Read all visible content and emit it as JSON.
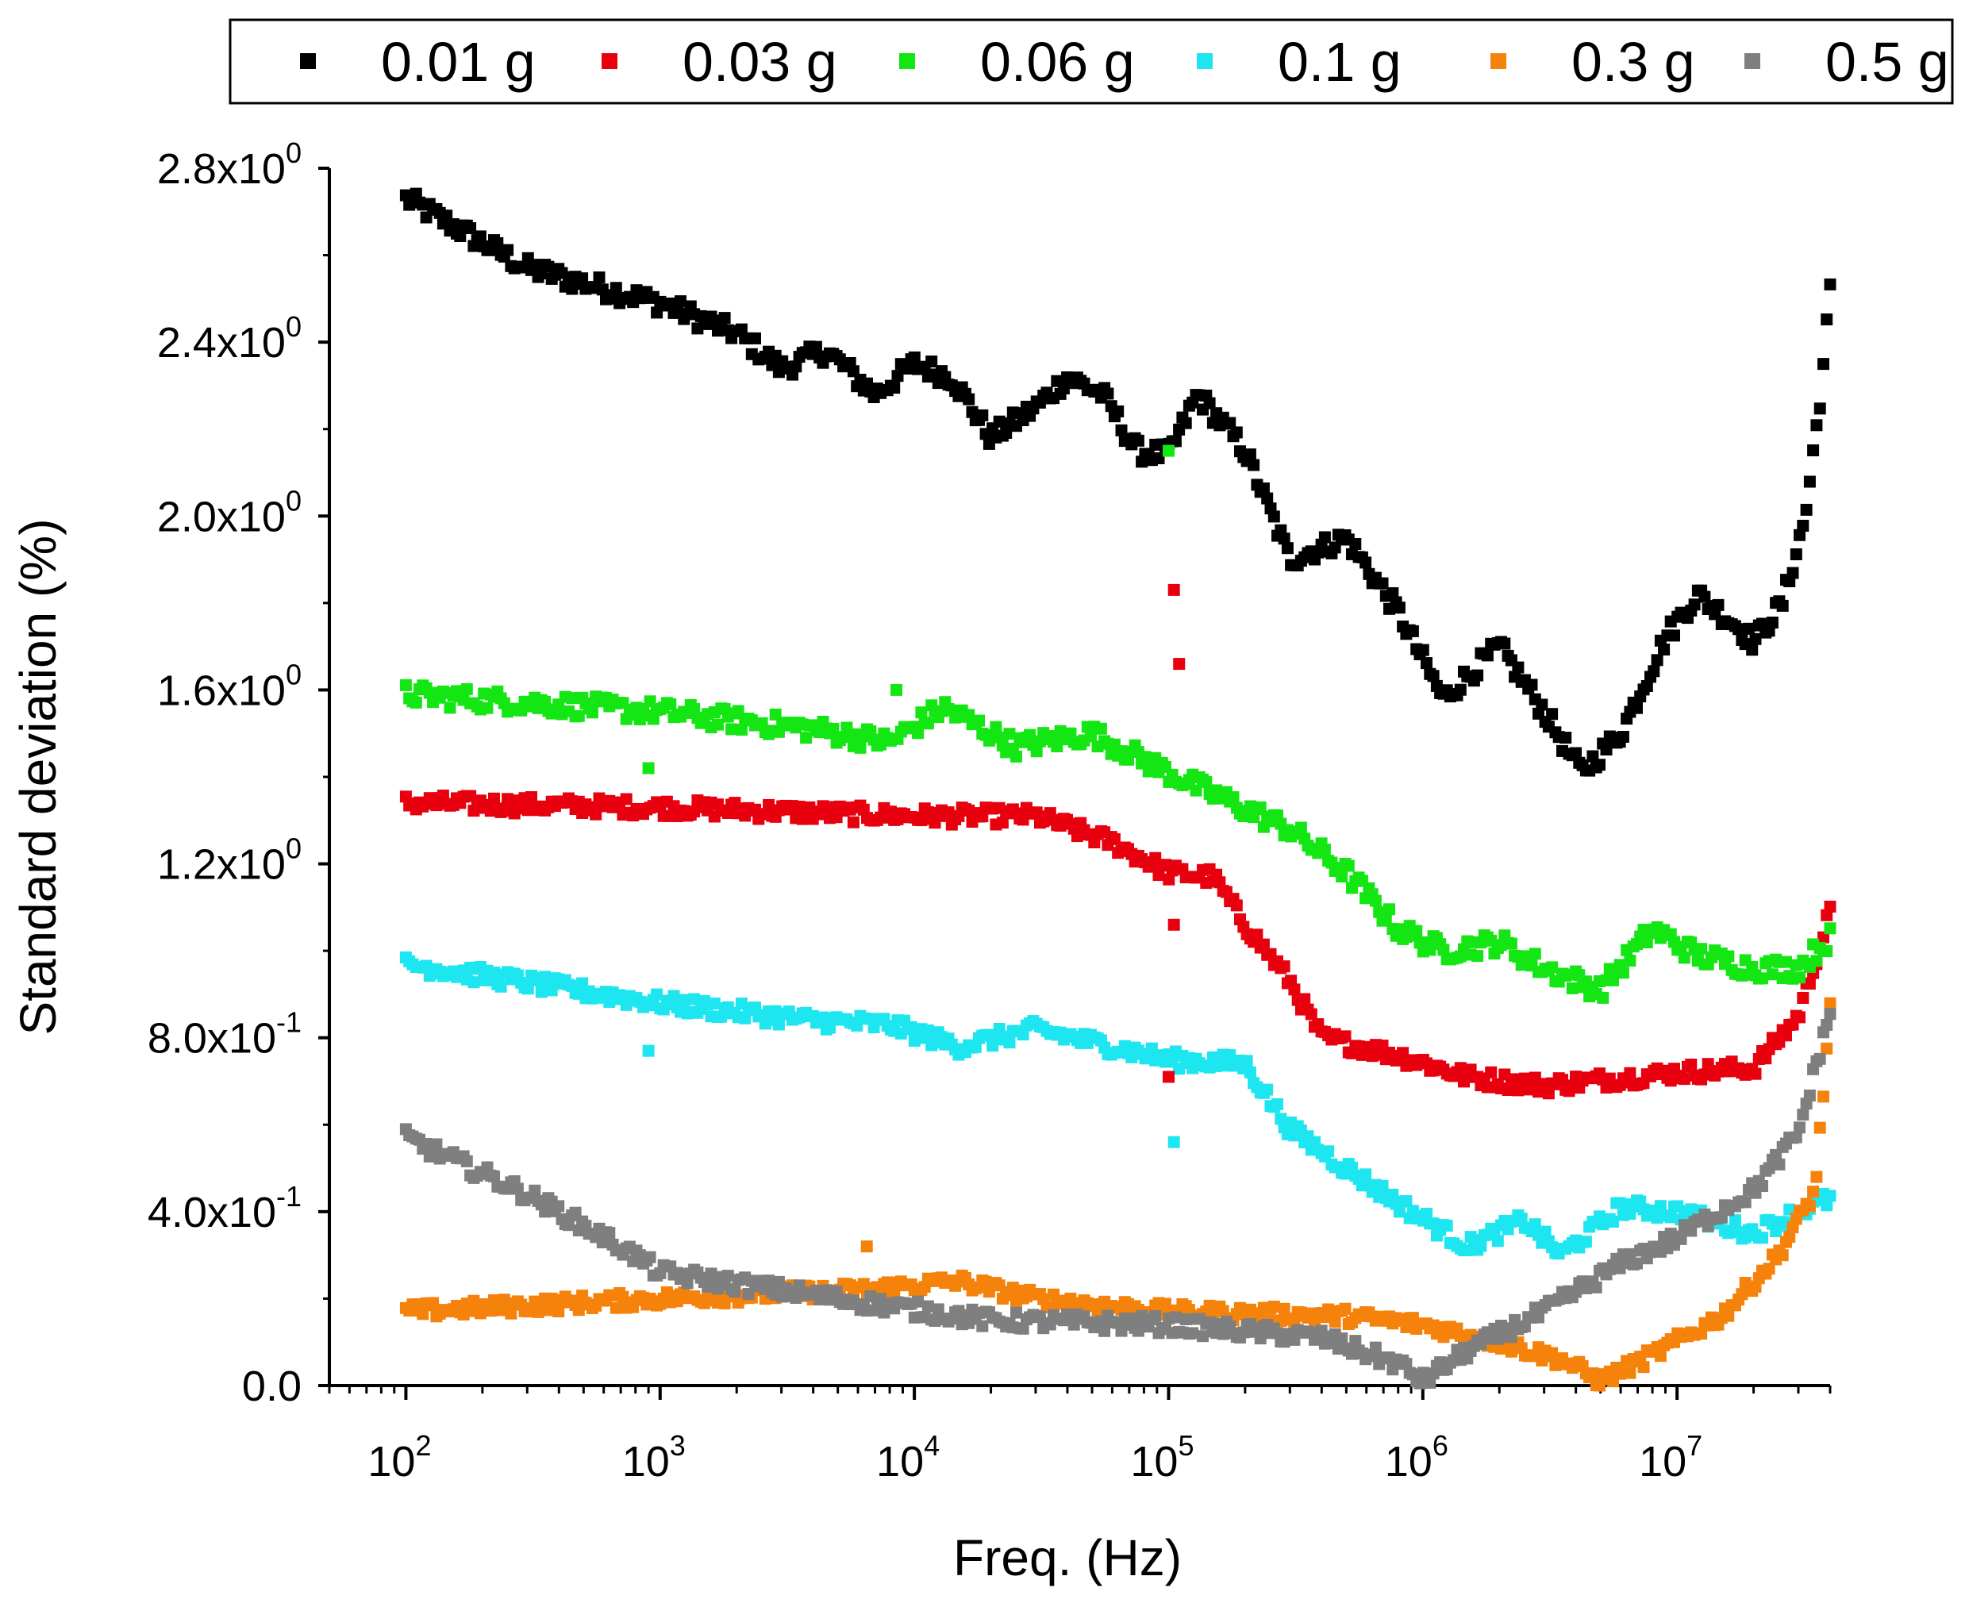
{
  "chart_data": {
    "type": "scatter",
    "title": "",
    "xlabel": "Freq. (Hz)",
    "ylabel": "Standard deviation (%)",
    "xscale": "log",
    "xlim": [
      50,
      40000000
    ],
    "ylim": [
      0,
      2.8
    ],
    "x_ticks": [
      {
        "value": 100,
        "base": "10",
        "exp": "2"
      },
      {
        "value": 1000,
        "base": "10",
        "exp": "3"
      },
      {
        "value": 10000,
        "base": "10",
        "exp": "4"
      },
      {
        "value": 100000,
        "base": "10",
        "exp": "5"
      },
      {
        "value": 1000000,
        "base": "10",
        "exp": "6"
      },
      {
        "value": 10000000,
        "base": "10",
        "exp": "7"
      }
    ],
    "y_ticks": [
      {
        "value": 0.0,
        "label": "0.0"
      },
      {
        "value": 0.4,
        "mant": "4.0x10",
        "exp": "-1"
      },
      {
        "value": 0.8,
        "mant": "8.0x10",
        "exp": "-1"
      },
      {
        "value": 1.2,
        "mant": "1.2x10",
        "exp": "0"
      },
      {
        "value": 1.6,
        "mant": "1.6x10",
        "exp": "0"
      },
      {
        "value": 2.0,
        "mant": "2.0x10",
        "exp": "0"
      },
      {
        "value": 2.4,
        "mant": "2.4x10",
        "exp": "0"
      },
      {
        "value": 2.8,
        "mant": "2.8x10",
        "exp": "0"
      }
    ],
    "legend_position": "top",
    "series": [
      {
        "name": "0.01 g",
        "color": "#000000",
        "profile": [
          [
            100,
            2.73
          ],
          [
            300,
            2.57
          ],
          [
            1000,
            2.49
          ],
          [
            2000,
            2.42
          ],
          [
            3000,
            2.34
          ],
          [
            4500,
            2.38
          ],
          [
            7000,
            2.28
          ],
          [
            10000,
            2.35
          ],
          [
            14000,
            2.32
          ],
          [
            20000,
            2.18
          ],
          [
            30000,
            2.25
          ],
          [
            40000,
            2.32
          ],
          [
            55000,
            2.28
          ],
          [
            75000,
            2.15
          ],
          [
            100000,
            2.14
          ],
          [
            130000,
            2.28
          ],
          [
            200000,
            2.15
          ],
          [
            300000,
            1.9
          ],
          [
            500000,
            1.95
          ],
          [
            800000,
            1.78
          ],
          [
            1200000,
            1.58
          ],
          [
            2000000,
            1.7
          ],
          [
            3000000,
            1.55
          ],
          [
            4200000,
            1.41
          ],
          [
            6000000,
            1.5
          ],
          [
            9000000,
            1.72
          ],
          [
            12000000,
            1.82
          ],
          [
            17000000,
            1.75
          ],
          [
            20000000,
            1.71
          ],
          [
            26000000,
            1.8
          ],
          [
            32000000,
            2.0
          ],
          [
            37000000,
            2.3
          ],
          [
            40000000,
            2.52
          ]
        ],
        "noise": 0.025
      },
      {
        "name": "0.03 g",
        "color": "#e8000f",
        "profile": [
          [
            100,
            1.34
          ],
          [
            1000,
            1.33
          ],
          [
            10000,
            1.31
          ],
          [
            30000,
            1.31
          ],
          [
            60000,
            1.25
          ],
          [
            100000,
            1.18
          ],
          [
            150000,
            1.17
          ],
          [
            200000,
            1.06
          ],
          [
            300000,
            0.93
          ],
          [
            400000,
            0.8
          ],
          [
            800000,
            0.76
          ],
          [
            1500000,
            0.71
          ],
          [
            3000000,
            0.69
          ],
          [
            10000000,
            0.72
          ],
          [
            20000000,
            0.73
          ],
          [
            30000000,
            0.85
          ],
          [
            40000000,
            1.09
          ]
        ],
        "noise": 0.02
      },
      {
        "name": "0.06 g",
        "color": "#14e614",
        "profile": [
          [
            100,
            1.59
          ],
          [
            1000,
            1.55
          ],
          [
            4000,
            1.51
          ],
          [
            8000,
            1.48
          ],
          [
            13000,
            1.56
          ],
          [
            25000,
            1.47
          ],
          [
            50000,
            1.5
          ],
          [
            100000,
            1.41
          ],
          [
            150000,
            1.36
          ],
          [
            300000,
            1.28
          ],
          [
            500000,
            1.18
          ],
          [
            800000,
            1.05
          ],
          [
            1200000,
            1.0
          ],
          [
            2000000,
            1.02
          ],
          [
            3000000,
            0.96
          ],
          [
            5000000,
            0.91
          ],
          [
            8000000,
            1.05
          ],
          [
            12000000,
            0.99
          ],
          [
            20000000,
            0.96
          ],
          [
            30000000,
            0.96
          ],
          [
            40000000,
            1.03
          ]
        ],
        "noise": 0.025
      },
      {
        "name": "0.1 g",
        "color": "#1ee6f0",
        "profile": [
          [
            100,
            0.97
          ],
          [
            1000,
            0.88
          ],
          [
            4000,
            0.84
          ],
          [
            8000,
            0.83
          ],
          [
            15000,
            0.78
          ],
          [
            30000,
            0.82
          ],
          [
            100000,
            0.75
          ],
          [
            200000,
            0.74
          ],
          [
            300000,
            0.59
          ],
          [
            500000,
            0.5
          ],
          [
            800000,
            0.42
          ],
          [
            1500000,
            0.32
          ],
          [
            2500000,
            0.38
          ],
          [
            3500000,
            0.3
          ],
          [
            6000000,
            0.41
          ],
          [
            10000000,
            0.4
          ],
          [
            20000000,
            0.35
          ],
          [
            30000000,
            0.4
          ],
          [
            40000000,
            0.43
          ]
        ],
        "noise": 0.02
      },
      {
        "name": "0.3 g",
        "color": "#f5820a",
        "profile": [
          [
            100,
            0.17
          ],
          [
            1000,
            0.2
          ],
          [
            6000,
            0.22
          ],
          [
            15000,
            0.24
          ],
          [
            30000,
            0.2
          ],
          [
            100000,
            0.17
          ],
          [
            500000,
            0.16
          ],
          [
            1000000,
            0.14
          ],
          [
            2000000,
            0.1
          ],
          [
            3500000,
            0.06
          ],
          [
            5000000,
            0.01
          ],
          [
            8000000,
            0.07
          ],
          [
            15000000,
            0.16
          ],
          [
            25000000,
            0.3
          ],
          [
            35000000,
            0.45
          ],
          [
            40000000,
            0.87
          ]
        ],
        "noise": 0.018
      },
      {
        "name": "0.5 g",
        "color": "#7f7f7f",
        "profile": [
          [
            100,
            0.57
          ],
          [
            300,
            0.44
          ],
          [
            700,
            0.32
          ],
          [
            1000,
            0.26
          ],
          [
            5000,
            0.2
          ],
          [
            20000,
            0.15
          ],
          [
            100000,
            0.14
          ],
          [
            400000,
            0.11
          ],
          [
            800000,
            0.05
          ],
          [
            1000000,
            0.01
          ],
          [
            1500000,
            0.08
          ],
          [
            3000000,
            0.17
          ],
          [
            6000000,
            0.28
          ],
          [
            10000000,
            0.34
          ],
          [
            20000000,
            0.45
          ],
          [
            30000000,
            0.58
          ],
          [
            40000000,
            0.86
          ]
        ],
        "noise": 0.02
      }
    ],
    "outliers": [
      {
        "series": "0.06 g",
        "x": 100000,
        "y": 2.15
      },
      {
        "series": "0.03 g",
        "x": 105000,
        "y": 1.83
      },
      {
        "series": "0.03 g",
        "x": 110000,
        "y": 1.66
      },
      {
        "series": "0.03 g",
        "x": 105000,
        "y": 1.06
      },
      {
        "series": "0.1 g",
        "x": 105000,
        "y": 0.56
      },
      {
        "series": "0.06 g",
        "x": 8500,
        "y": 1.6
      },
      {
        "series": "0.06 g",
        "x": 900,
        "y": 1.42
      },
      {
        "series": "0.1 g",
        "x": 900,
        "y": 0.77
      },
      {
        "series": "0.03 g",
        "x": 100000,
        "y": 0.71
      },
      {
        "series": "0.3 g",
        "x": 6500,
        "y": 0.32
      }
    ]
  }
}
